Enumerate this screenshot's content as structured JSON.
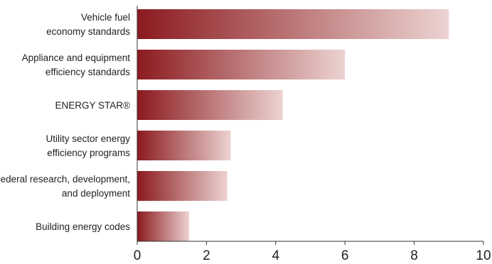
{
  "chart_data": {
    "type": "bar",
    "orientation": "horizontal",
    "categories": [
      [
        "Vehicle fuel",
        "economy standards"
      ],
      [
        "Appliance and equipment",
        "efficiency standards"
      ],
      [
        "ENERGY STAR®"
      ],
      [
        "Utility sector energy",
        "efficiency programs"
      ],
      [
        "Federal research, development,",
        "and deployment"
      ],
      [
        "Building energy codes"
      ]
    ],
    "values": [
      9.0,
      6.0,
      4.2,
      2.7,
      2.6,
      1.5
    ],
    "xlim": [
      0,
      10
    ],
    "xticks": [
      "0",
      "2",
      "4",
      "6",
      "8",
      "10"
    ],
    "title": "",
    "xlabel": "",
    "ylabel": "",
    "grid": false,
    "colors": {
      "bar_start": "#8b1a1f",
      "bar_end": "#ecd3d1",
      "axis": "#333333",
      "text": "#222222"
    }
  }
}
